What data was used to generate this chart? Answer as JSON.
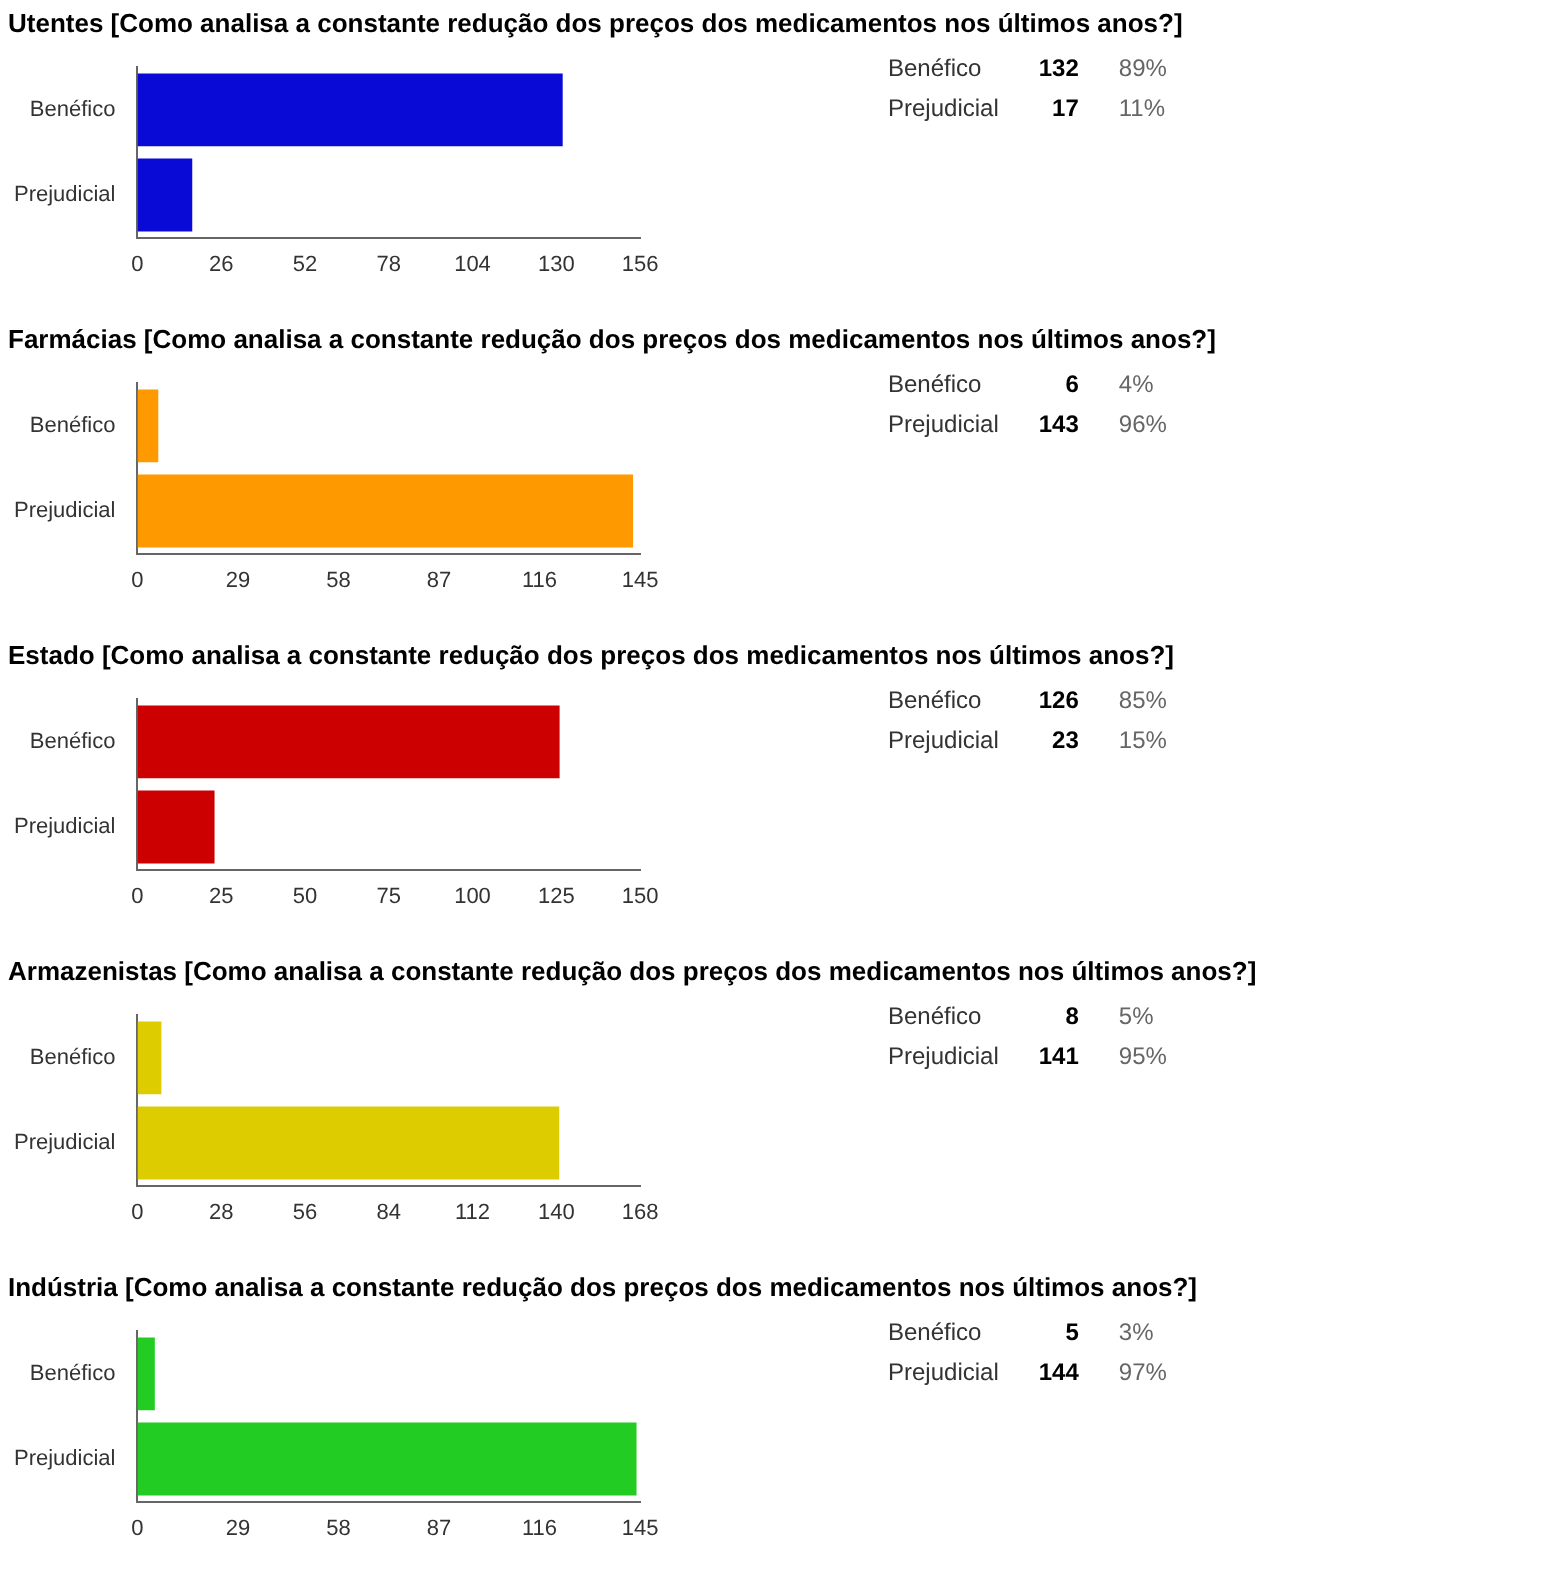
{
  "chart_data": [
    {
      "type": "bar",
      "orientation": "horizontal",
      "title": "Utentes [Como analisa a constante redução dos preços dos medicamentos nos últimos anos?]",
      "categories": [
        "Benéfico",
        "Prejudicial"
      ],
      "values": [
        132,
        17
      ],
      "annotations": [
        "132",
        "89%",
        "17",
        "11%"
      ],
      "color": "#0a0ad6",
      "xlim": [
        0,
        156
      ],
      "xticks": [
        0,
        26,
        52,
        78,
        104,
        130,
        156
      ],
      "grid": false,
      "legend": false
    },
    {
      "type": "bar",
      "orientation": "horizontal",
      "title": "Farmácias [Como analisa a constante redução dos preços dos medicamentos nos últimos anos?]",
      "categories": [
        "Benéfico",
        "Prejudicial"
      ],
      "values": [
        6,
        143
      ],
      "annotations": [
        "6",
        "4%",
        "143",
        "96%"
      ],
      "color": "#ff9900",
      "xlim": [
        0,
        145
      ],
      "xticks": [
        0,
        29,
        58,
        87,
        116,
        145
      ],
      "grid": false,
      "legend": false
    },
    {
      "type": "bar",
      "orientation": "horizontal",
      "title": "Estado [Como analisa a constante redução dos preços dos medicamentos nos últimos anos?]",
      "categories": [
        "Benéfico",
        "Prejudicial"
      ],
      "values": [
        126,
        23
      ],
      "annotations": [
        "126",
        "85%",
        "23",
        "15%"
      ],
      "color": "#cc0000",
      "xlim": [
        0,
        150
      ],
      "xticks": [
        0,
        25,
        50,
        75,
        100,
        125,
        150
      ],
      "grid": false,
      "legend": false
    },
    {
      "type": "bar",
      "orientation": "horizontal",
      "title": "Armazenistas [Como analisa a constante redução dos preços dos medicamentos nos últimos anos?]",
      "categories": [
        "Benéfico",
        "Prejudicial"
      ],
      "values": [
        8,
        141
      ],
      "annotations": [
        "8",
        "5%",
        "141",
        "95%"
      ],
      "color": "#ddcc00",
      "xlim": [
        0,
        168
      ],
      "xticks": [
        0,
        28,
        56,
        84,
        112,
        140,
        168
      ],
      "grid": false,
      "legend": false
    },
    {
      "type": "bar",
      "orientation": "horizontal",
      "title": "Indústria [Como analisa a constante redução dos preços dos medicamentos nos últimos anos?]",
      "categories": [
        "Benéfico",
        "Prejudicial"
      ],
      "values": [
        5,
        144
      ],
      "annotations": [
        "5",
        "3%",
        "144",
        "97%"
      ],
      "color": "#22cc22",
      "xlim": [
        0,
        145
      ],
      "xticks": [
        0,
        29,
        58,
        87,
        116,
        145
      ],
      "grid": false,
      "legend": false
    }
  ]
}
